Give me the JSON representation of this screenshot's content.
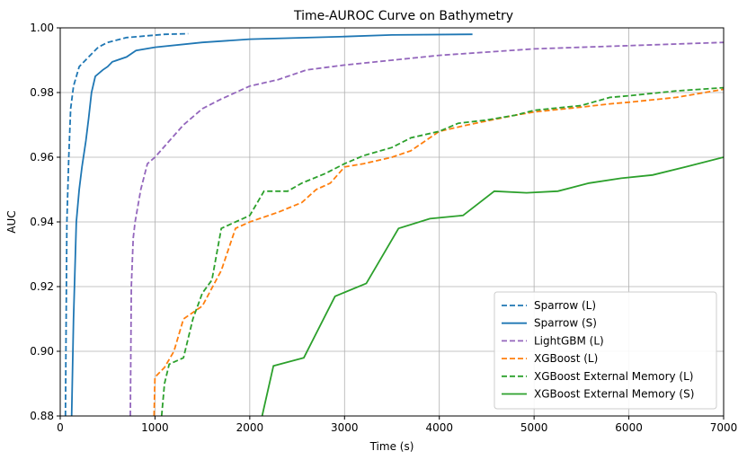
{
  "chart_data": {
    "type": "line",
    "title": "Time-AUROC Curve on Bathymetry",
    "xlabel": "Time (s)",
    "ylabel": "AUC",
    "xlim": [
      0,
      7000
    ],
    "ylim": [
      0.88,
      1.0
    ],
    "xticks": [
      0,
      1000,
      2000,
      3000,
      4000,
      5000,
      6000,
      7000
    ],
    "yticks": [
      0.88,
      0.9,
      0.92,
      0.94,
      0.96,
      0.98,
      1.0
    ],
    "xtick_labels": [
      "0",
      "1000",
      "2000",
      "3000",
      "4000",
      "5000",
      "6000",
      "7000"
    ],
    "ytick_labels": [
      "0.88",
      "0.90",
      "0.92",
      "0.94",
      "0.96",
      "0.98",
      "1.00"
    ],
    "grid": true,
    "legend_position": "lower-right",
    "series": [
      {
        "name": "Sparrow (L)",
        "color": "#1f77b4",
        "style": "dashed",
        "points": [
          [
            55,
            0.88
          ],
          [
            70,
            0.94
          ],
          [
            90,
            0.96
          ],
          [
            110,
            0.975
          ],
          [
            140,
            0.982
          ],
          [
            200,
            0.988
          ],
          [
            300,
            0.991
          ],
          [
            400,
            0.994
          ],
          [
            500,
            0.9955
          ],
          [
            700,
            0.997
          ],
          [
            900,
            0.9975
          ],
          [
            1100,
            0.998
          ],
          [
            1350,
            0.9982
          ]
        ]
      },
      {
        "name": "Sparrow (S)",
        "color": "#1f77b4",
        "style": "solid",
        "points": [
          [
            120,
            0.88
          ],
          [
            140,
            0.91
          ],
          [
            170,
            0.94
          ],
          [
            200,
            0.95
          ],
          [
            230,
            0.957
          ],
          [
            270,
            0.965
          ],
          [
            300,
            0.972
          ],
          [
            330,
            0.98
          ],
          [
            370,
            0.985
          ],
          [
            450,
            0.987
          ],
          [
            500,
            0.988
          ],
          [
            550,
            0.9895
          ],
          [
            700,
            0.991
          ],
          [
            800,
            0.993
          ],
          [
            1000,
            0.994
          ],
          [
            1500,
            0.9955
          ],
          [
            2000,
            0.9965
          ],
          [
            3000,
            0.9973
          ],
          [
            3500,
            0.9978
          ],
          [
            4350,
            0.998
          ]
        ]
      },
      {
        "name": "LightGBM (L)",
        "color": "#9467bd",
        "style": "dashed",
        "points": [
          [
            740,
            0.88
          ],
          [
            750,
            0.92
          ],
          [
            770,
            0.935
          ],
          [
            790,
            0.94
          ],
          [
            850,
            0.95
          ],
          [
            920,
            0.958
          ],
          [
            1000,
            0.96
          ],
          [
            1150,
            0.965
          ],
          [
            1300,
            0.97
          ],
          [
            1500,
            0.975
          ],
          [
            1700,
            0.978
          ],
          [
            2000,
            0.982
          ],
          [
            2300,
            0.984
          ],
          [
            2600,
            0.987
          ],
          [
            3000,
            0.9885
          ],
          [
            3500,
            0.99
          ],
          [
            4000,
            0.9915
          ],
          [
            4500,
            0.9925
          ],
          [
            5000,
            0.9935
          ],
          [
            5500,
            0.994
          ],
          [
            6000,
            0.9945
          ],
          [
            7000,
            0.9955
          ]
        ]
      },
      {
        "name": "XGBoost (L)",
        "color": "#ff7f0e",
        "style": "dashed",
        "points": [
          [
            990,
            0.88
          ],
          [
            1000,
            0.892
          ],
          [
            1100,
            0.895
          ],
          [
            1200,
            0.9
          ],
          [
            1300,
            0.91
          ],
          [
            1500,
            0.914
          ],
          [
            1700,
            0.925
          ],
          [
            1850,
            0.938
          ],
          [
            2000,
            0.94
          ],
          [
            2300,
            0.943
          ],
          [
            2550,
            0.946
          ],
          [
            2700,
            0.95
          ],
          [
            2850,
            0.952
          ],
          [
            3000,
            0.957
          ],
          [
            3200,
            0.958
          ],
          [
            3500,
            0.96
          ],
          [
            3700,
            0.962
          ],
          [
            3800,
            0.964
          ],
          [
            4000,
            0.968
          ],
          [
            4300,
            0.97
          ],
          [
            4800,
            0.973
          ],
          [
            5000,
            0.974
          ],
          [
            5500,
            0.9755
          ],
          [
            5800,
            0.9765
          ],
          [
            6000,
            0.977
          ],
          [
            6500,
            0.9785
          ],
          [
            7000,
            0.981
          ]
        ]
      },
      {
        "name": "XGBoost External Memory (L)",
        "color": "#2ca02c",
        "style": "dashed",
        "points": [
          [
            1070,
            0.88
          ],
          [
            1100,
            0.89
          ],
          [
            1150,
            0.896
          ],
          [
            1300,
            0.898
          ],
          [
            1400,
            0.91
          ],
          [
            1500,
            0.918
          ],
          [
            1600,
            0.922
          ],
          [
            1700,
            0.938
          ],
          [
            2000,
            0.942
          ],
          [
            2150,
            0.9495
          ],
          [
            2400,
            0.9495
          ],
          [
            2550,
            0.952
          ],
          [
            2800,
            0.955
          ],
          [
            3000,
            0.958
          ],
          [
            3200,
            0.9605
          ],
          [
            3500,
            0.963
          ],
          [
            3700,
            0.966
          ],
          [
            4000,
            0.968
          ],
          [
            4200,
            0.9705
          ],
          [
            4500,
            0.9715
          ],
          [
            4800,
            0.973
          ],
          [
            5000,
            0.9745
          ],
          [
            5500,
            0.976
          ],
          [
            5800,
            0.9785
          ],
          [
            6000,
            0.979
          ],
          [
            6500,
            0.9805
          ],
          [
            7000,
            0.9815
          ]
        ]
      },
      {
        "name": "XGBoost External Memory (S)",
        "color": "#2ca02c",
        "style": "solid",
        "points": [
          [
            2130,
            0.88
          ],
          [
            2250,
            0.8955
          ],
          [
            2570,
            0.898
          ],
          [
            2900,
            0.917
          ],
          [
            3230,
            0.921
          ],
          [
            3570,
            0.938
          ],
          [
            3900,
            0.941
          ],
          [
            4250,
            0.942
          ],
          [
            4580,
            0.9495
          ],
          [
            4920,
            0.949
          ],
          [
            5250,
            0.9495
          ],
          [
            5580,
            0.952
          ],
          [
            5920,
            0.9535
          ],
          [
            6250,
            0.9545
          ],
          [
            6600,
            0.957
          ],
          [
            7000,
            0.96
          ]
        ]
      }
    ]
  }
}
